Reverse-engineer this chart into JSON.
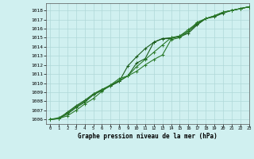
{
  "xlabel": "Graphe pression niveau de la mer (hPa)",
  "xlim": [
    -0.5,
    23
  ],
  "ylim": [
    1005.5,
    1018.8
  ],
  "yticks": [
    1006,
    1007,
    1008,
    1009,
    1010,
    1011,
    1012,
    1013,
    1014,
    1015,
    1016,
    1017,
    1018
  ],
  "xticks": [
    0,
    1,
    2,
    3,
    4,
    5,
    6,
    7,
    8,
    9,
    10,
    11,
    12,
    13,
    14,
    15,
    16,
    17,
    18,
    19,
    20,
    21,
    22,
    23
  ],
  "bg_color": "#d0f0f0",
  "grid_color": "#b0d8d8",
  "line_color_dark": "#1a5c1a",
  "line_color_mid": "#2a7a2a",
  "line1": [
    1006.0,
    1006.1,
    1006.8,
    1007.5,
    1008.1,
    1008.8,
    1009.3,
    1009.7,
    1010.2,
    1011.9,
    1012.9,
    1013.8,
    1014.5,
    1014.9,
    1015.0,
    1015.1,
    1015.5,
    1016.4,
    1017.1,
    1017.3,
    1017.7,
    1018.0,
    1018.2,
    1018.4
  ],
  "line2": [
    1006.0,
    1006.1,
    1006.6,
    1007.3,
    1007.9,
    1008.7,
    1009.2,
    1009.7,
    1010.2,
    1010.8,
    1012.2,
    1012.7,
    1014.5,
    1014.9,
    1014.9,
    1015.2,
    1015.7,
    1016.5,
    1017.1,
    1017.4,
    1017.8,
    1018.0,
    1018.2,
    1018.4
  ],
  "line3": [
    1006.0,
    1006.1,
    1006.4,
    1007.0,
    1007.7,
    1008.3,
    1009.1,
    1009.8,
    1010.5,
    1010.8,
    1011.3,
    1012.0,
    1012.6,
    1013.1,
    1014.8,
    1015.0,
    1015.7,
    1016.7,
    1017.1,
    1017.4,
    1017.8,
    1018.0,
    1018.2,
    1018.4
  ],
  "line4": [
    1006.0,
    1006.2,
    1006.7,
    1007.4,
    1008.0,
    1008.8,
    1009.3,
    1009.8,
    1010.3,
    1010.8,
    1011.8,
    1012.6,
    1013.4,
    1014.2,
    1015.0,
    1015.2,
    1015.9,
    1016.6,
    1017.1,
    1017.4,
    1017.8,
    1018.0,
    1018.2,
    1018.4
  ]
}
